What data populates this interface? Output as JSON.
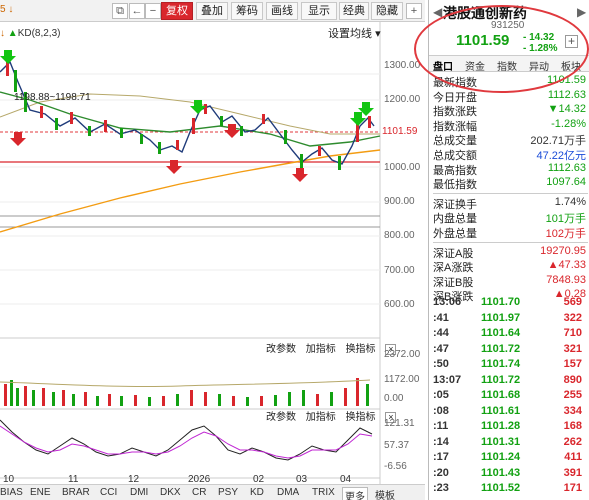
{
  "toolbar": {
    "left_text": "5 ↓",
    "buttons": [
      "复权",
      "叠加",
      "筹码",
      "画线",
      "显示",
      "经典",
      "隐藏"
    ],
    "icon_restore": "⧉",
    "icon_back": "←",
    "icon_minus": "−",
    "icon_plus": "+"
  },
  "legend": {
    "name": "KD(8,2,3)"
  },
  "settings_label": "设置均线",
  "range_label": "1198.88~1198.71",
  "last_price_tag": "1101.59",
  "y_axis_main": [
    "1300.00",
    "1200.00",
    "1100.00",
    "1000.00",
    "900.00",
    "800.00",
    "700.00",
    "600.00"
  ],
  "volume_axis": [
    "2372.00",
    "1172.00",
    "0.00"
  ],
  "volume_toolbar": [
    "改参数",
    "加指标",
    "换指标"
  ],
  "kd_toolbar": [
    "改参数",
    "加指标",
    "换指标"
  ],
  "kd_axis": [
    "121.31",
    "57.37",
    "-6.56"
  ],
  "x_ticks": [
    "10",
    "11",
    "12",
    "2026",
    "02",
    "03",
    "04"
  ],
  "bottom_tabs": [
    "BIAS",
    "ENE",
    "BRAR",
    "CCI",
    "DMI",
    "DKX",
    "CR",
    "PSY",
    "KD",
    "DMA",
    "TRIX",
    "更多",
    "模板"
  ],
  "right_panel": {
    "title": "港股通创新药",
    "code": "931250",
    "price": "1101.59",
    "change": "- 14.32",
    "change_pct": "- 1.28%",
    "tabs": [
      "盘口",
      "资金",
      "指数",
      "异动",
      "板块"
    ],
    "rows": [
      {
        "label": "最新指数",
        "value": "1101.59",
        "color": "#12a112"
      },
      {
        "label": "今日开盘",
        "value": "1112.63",
        "color": "#12a112"
      },
      {
        "label": "指数涨跌",
        "value": "▼14.32",
        "color": "#12a112"
      },
      {
        "label": "指数涨幅",
        "value": "-1.28%",
        "color": "#12a112"
      },
      {
        "label": "总成交量",
        "value": "202.71万手",
        "color": "#333333"
      },
      {
        "label": "总成交额",
        "value": "47.22亿元",
        "color": "#1a4cd8"
      },
      {
        "label": "最高指数",
        "value": "1112.63",
        "color": "#12a112"
      },
      {
        "label": "最低指数",
        "value": "1097.64",
        "color": "#12a112"
      }
    ],
    "rows2": [
      {
        "label": "深证换手",
        "value": "1.74%",
        "color": "#333333"
      },
      {
        "label": "内盘总量",
        "value": "101万手",
        "color": "#12a112"
      },
      {
        "label": "外盘总量",
        "value": "102万手",
        "color": "#d9262c"
      }
    ],
    "rows3": [
      {
        "label": "深证A股",
        "value": "19270.95",
        "color": "#d9262c"
      },
      {
        "label": "深A涨跌",
        "value": "▲47.33",
        "color": "#d9262c"
      },
      {
        "label": "深证B股",
        "value": "7848.93",
        "color": "#d9262c"
      },
      {
        "label": "深B涨跌",
        "value": "▲0.28",
        "color": "#d9262c"
      }
    ],
    "ticks": [
      {
        "time": "13:06",
        "price": "1101.70",
        "vol": "569"
      },
      {
        "time": ":41",
        "price": "1101.97",
        "vol": "322"
      },
      {
        "time": ":44",
        "price": "1101.64",
        "vol": "710"
      },
      {
        "time": ":47",
        "price": "1101.72",
        "vol": "321"
      },
      {
        "time": ":50",
        "price": "1101.74",
        "vol": "157"
      },
      {
        "time": "13:07",
        "price": "1101.72",
        "vol": "890"
      },
      {
        "time": ":05",
        "price": "1101.68",
        "vol": "255"
      },
      {
        "time": ":08",
        "price": "1101.61",
        "vol": "334"
      },
      {
        "time": ":11",
        "price": "1101.28",
        "vol": "168"
      },
      {
        "time": ":14",
        "price": "1101.31",
        "vol": "262"
      },
      {
        "time": ":17",
        "price": "1101.24",
        "vol": "411"
      },
      {
        "time": ":20",
        "price": "1101.43",
        "vol": "391"
      },
      {
        "time": ":23",
        "price": "1101.52",
        "vol": "171"
      }
    ]
  }
}
